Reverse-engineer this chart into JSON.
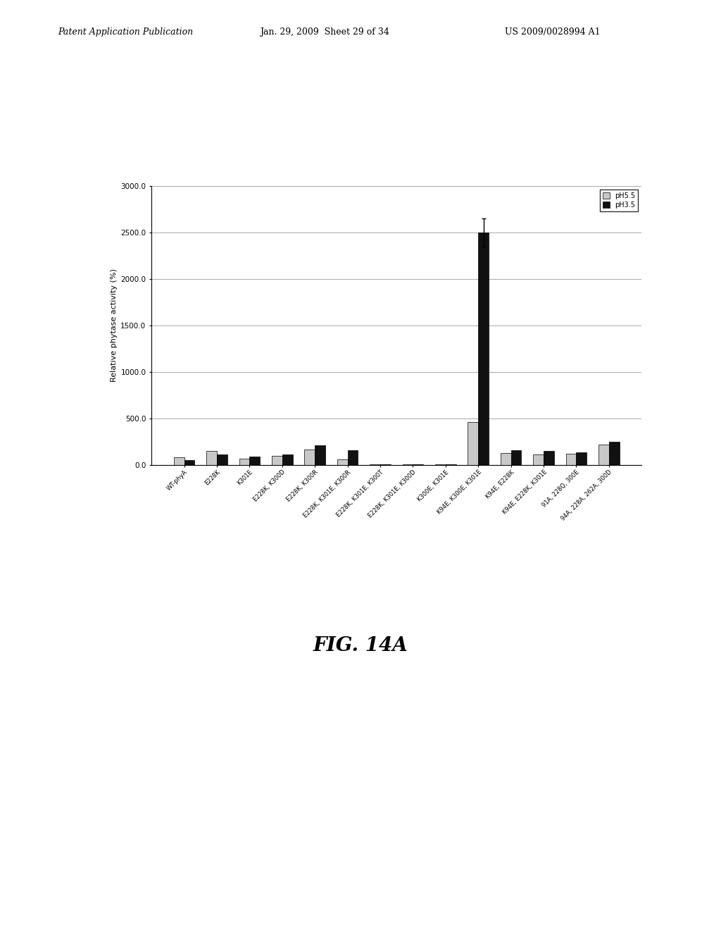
{
  "categories": [
    "WT-phyA",
    "E228K",
    "K301E",
    "E228K, K300D",
    "E228K, K300R",
    "E228K, K301E, K300R",
    "E228K, K301E, K300T",
    "E228K, K301E, K300D",
    "K300E, K301E",
    "K94E, K300E, K301E",
    "K94E, E228K",
    "K94E, E228K, K301E",
    "91A, 228Q, 300E",
    "94A, 228A, 262A, 300D"
  ],
  "ph55_values": [
    80,
    150,
    70,
    100,
    170,
    60,
    5,
    5,
    5,
    460,
    130,
    110,
    120,
    220
  ],
  "ph35_values": [
    55,
    110,
    90,
    110,
    210,
    160,
    5,
    5,
    5,
    2500,
    160,
    150,
    140,
    250
  ],
  "ph35_error": [
    0,
    0,
    0,
    0,
    0,
    0,
    0,
    0,
    0,
    150,
    0,
    0,
    0,
    0
  ],
  "color_ph55": "#c8c8c8",
  "color_ph35": "#111111",
  "ylabel": "Relative phytase activity (%)",
  "ylim": [
    0,
    3000
  ],
  "yticks": [
    0.0,
    500.0,
    1000.0,
    1500.0,
    2000.0,
    2500.0,
    3000.0
  ],
  "legend_ph55": "pH5.5",
  "legend_ph35": "pH3.5",
  "title": "FIG. 14A",
  "header_left": "Patent Application Publication",
  "header_center": "Jan. 29, 2009  Sheet 29 of 34",
  "header_right": "US 2009/0028994 A1"
}
